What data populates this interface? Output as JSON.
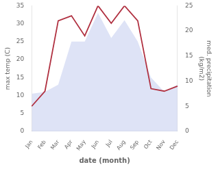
{
  "chart_data": {
    "type": "line",
    "categories": [
      "Jan",
      "Feb",
      "Mar",
      "Apr",
      "May",
      "Jun",
      "Jul",
      "Aug",
      "Sep",
      "Oct",
      "Nov",
      "Dec"
    ],
    "xlabel": "date (month)",
    "ylabel": "max temp (C)",
    "y2label": "med. precipitation\n(kg/m2)",
    "series": [
      {
        "type": "area",
        "color": "#c8d0f0",
        "values": [
          10.5,
          11.0,
          13.0,
          25.0,
          25.0,
          33.0,
          26.0,
          31.0,
          25.0,
          15.0,
          11.0,
          13.0
        ]
      },
      {
        "type": "line",
        "axis": "y2",
        "color": "#b03040",
        "values": [
          5.0,
          8.0,
          22.0,
          23.0,
          19.0,
          25.0,
          21.5,
          25.0,
          22.0,
          8.5,
          8.0,
          9.0
        ]
      }
    ],
    "ylim": [
      0,
      35
    ],
    "yticks": [
      0,
      5,
      10,
      15,
      20,
      25,
      30,
      35
    ],
    "y2lim": [
      0,
      25
    ],
    "y2ticks": [
      0,
      5,
      10,
      15,
      20,
      25
    ],
    "grid": false
  }
}
